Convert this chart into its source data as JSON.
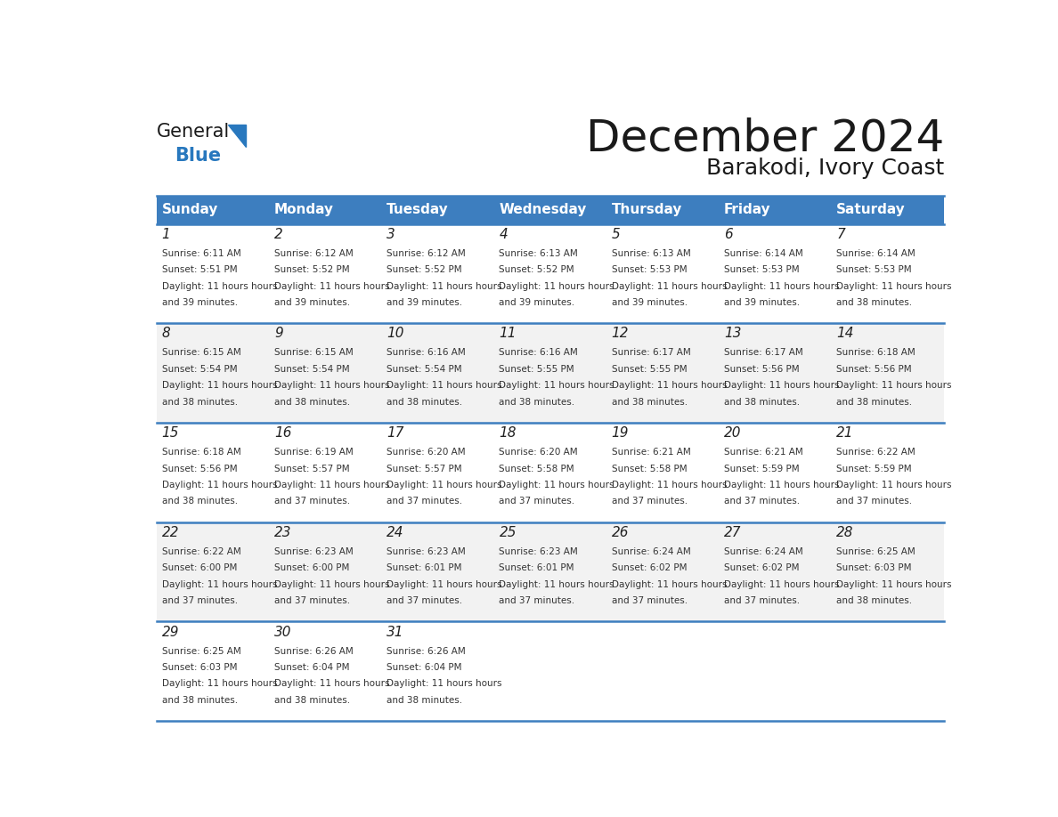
{
  "title": "December 2024",
  "subtitle": "Barakodi, Ivory Coast",
  "header_color": "#3d7ebf",
  "header_text_color": "#ffffff",
  "cell_bg_color": "#ffffff",
  "alt_cell_bg_color": "#f2f2f2",
  "day_names": [
    "Sunday",
    "Monday",
    "Tuesday",
    "Wednesday",
    "Thursday",
    "Friday",
    "Saturday"
  ],
  "days": [
    {
      "day": 1,
      "col": 0,
      "row": 0,
      "sunrise": "6:11 AM",
      "sunset": "5:51 PM",
      "daylight": "11 hours and 39 minutes."
    },
    {
      "day": 2,
      "col": 1,
      "row": 0,
      "sunrise": "6:12 AM",
      "sunset": "5:52 PM",
      "daylight": "11 hours and 39 minutes."
    },
    {
      "day": 3,
      "col": 2,
      "row": 0,
      "sunrise": "6:12 AM",
      "sunset": "5:52 PM",
      "daylight": "11 hours and 39 minutes."
    },
    {
      "day": 4,
      "col": 3,
      "row": 0,
      "sunrise": "6:13 AM",
      "sunset": "5:52 PM",
      "daylight": "11 hours and 39 minutes."
    },
    {
      "day": 5,
      "col": 4,
      "row": 0,
      "sunrise": "6:13 AM",
      "sunset": "5:53 PM",
      "daylight": "11 hours and 39 minutes."
    },
    {
      "day": 6,
      "col": 5,
      "row": 0,
      "sunrise": "6:14 AM",
      "sunset": "5:53 PM",
      "daylight": "11 hours and 39 minutes."
    },
    {
      "day": 7,
      "col": 6,
      "row": 0,
      "sunrise": "6:14 AM",
      "sunset": "5:53 PM",
      "daylight": "11 hours and 38 minutes."
    },
    {
      "day": 8,
      "col": 0,
      "row": 1,
      "sunrise": "6:15 AM",
      "sunset": "5:54 PM",
      "daylight": "11 hours and 38 minutes."
    },
    {
      "day": 9,
      "col": 1,
      "row": 1,
      "sunrise": "6:15 AM",
      "sunset": "5:54 PM",
      "daylight": "11 hours and 38 minutes."
    },
    {
      "day": 10,
      "col": 2,
      "row": 1,
      "sunrise": "6:16 AM",
      "sunset": "5:54 PM",
      "daylight": "11 hours and 38 minutes."
    },
    {
      "day": 11,
      "col": 3,
      "row": 1,
      "sunrise": "6:16 AM",
      "sunset": "5:55 PM",
      "daylight": "11 hours and 38 minutes."
    },
    {
      "day": 12,
      "col": 4,
      "row": 1,
      "sunrise": "6:17 AM",
      "sunset": "5:55 PM",
      "daylight": "11 hours and 38 minutes."
    },
    {
      "day": 13,
      "col": 5,
      "row": 1,
      "sunrise": "6:17 AM",
      "sunset": "5:56 PM",
      "daylight": "11 hours and 38 minutes."
    },
    {
      "day": 14,
      "col": 6,
      "row": 1,
      "sunrise": "6:18 AM",
      "sunset": "5:56 PM",
      "daylight": "11 hours and 38 minutes."
    },
    {
      "day": 15,
      "col": 0,
      "row": 2,
      "sunrise": "6:18 AM",
      "sunset": "5:56 PM",
      "daylight": "11 hours and 38 minutes."
    },
    {
      "day": 16,
      "col": 1,
      "row": 2,
      "sunrise": "6:19 AM",
      "sunset": "5:57 PM",
      "daylight": "11 hours and 37 minutes."
    },
    {
      "day": 17,
      "col": 2,
      "row": 2,
      "sunrise": "6:20 AM",
      "sunset": "5:57 PM",
      "daylight": "11 hours and 37 minutes."
    },
    {
      "day": 18,
      "col": 3,
      "row": 2,
      "sunrise": "6:20 AM",
      "sunset": "5:58 PM",
      "daylight": "11 hours and 37 minutes."
    },
    {
      "day": 19,
      "col": 4,
      "row": 2,
      "sunrise": "6:21 AM",
      "sunset": "5:58 PM",
      "daylight": "11 hours and 37 minutes."
    },
    {
      "day": 20,
      "col": 5,
      "row": 2,
      "sunrise": "6:21 AM",
      "sunset": "5:59 PM",
      "daylight": "11 hours and 37 minutes."
    },
    {
      "day": 21,
      "col": 6,
      "row": 2,
      "sunrise": "6:22 AM",
      "sunset": "5:59 PM",
      "daylight": "11 hours and 37 minutes."
    },
    {
      "day": 22,
      "col": 0,
      "row": 3,
      "sunrise": "6:22 AM",
      "sunset": "6:00 PM",
      "daylight": "11 hours and 37 minutes."
    },
    {
      "day": 23,
      "col": 1,
      "row": 3,
      "sunrise": "6:23 AM",
      "sunset": "6:00 PM",
      "daylight": "11 hours and 37 minutes."
    },
    {
      "day": 24,
      "col": 2,
      "row": 3,
      "sunrise": "6:23 AM",
      "sunset": "6:01 PM",
      "daylight": "11 hours and 37 minutes."
    },
    {
      "day": 25,
      "col": 3,
      "row": 3,
      "sunrise": "6:23 AM",
      "sunset": "6:01 PM",
      "daylight": "11 hours and 37 minutes."
    },
    {
      "day": 26,
      "col": 4,
      "row": 3,
      "sunrise": "6:24 AM",
      "sunset": "6:02 PM",
      "daylight": "11 hours and 37 minutes."
    },
    {
      "day": 27,
      "col": 5,
      "row": 3,
      "sunrise": "6:24 AM",
      "sunset": "6:02 PM",
      "daylight": "11 hours and 37 minutes."
    },
    {
      "day": 28,
      "col": 6,
      "row": 3,
      "sunrise": "6:25 AM",
      "sunset": "6:03 PM",
      "daylight": "11 hours and 38 minutes."
    },
    {
      "day": 29,
      "col": 0,
      "row": 4,
      "sunrise": "6:25 AM",
      "sunset": "6:03 PM",
      "daylight": "11 hours and 38 minutes."
    },
    {
      "day": 30,
      "col": 1,
      "row": 4,
      "sunrise": "6:26 AM",
      "sunset": "6:04 PM",
      "daylight": "11 hours and 38 minutes."
    },
    {
      "day": 31,
      "col": 2,
      "row": 4,
      "sunrise": "6:26 AM",
      "sunset": "6:04 PM",
      "daylight": "11 hours and 38 minutes."
    }
  ],
  "n_rows": 5,
  "n_cols": 7,
  "logo_text1": "General",
  "logo_text2": "Blue",
  "logo_color1": "#1a1a1a",
  "logo_color2": "#2878be",
  "logo_triangle_color": "#2878be"
}
